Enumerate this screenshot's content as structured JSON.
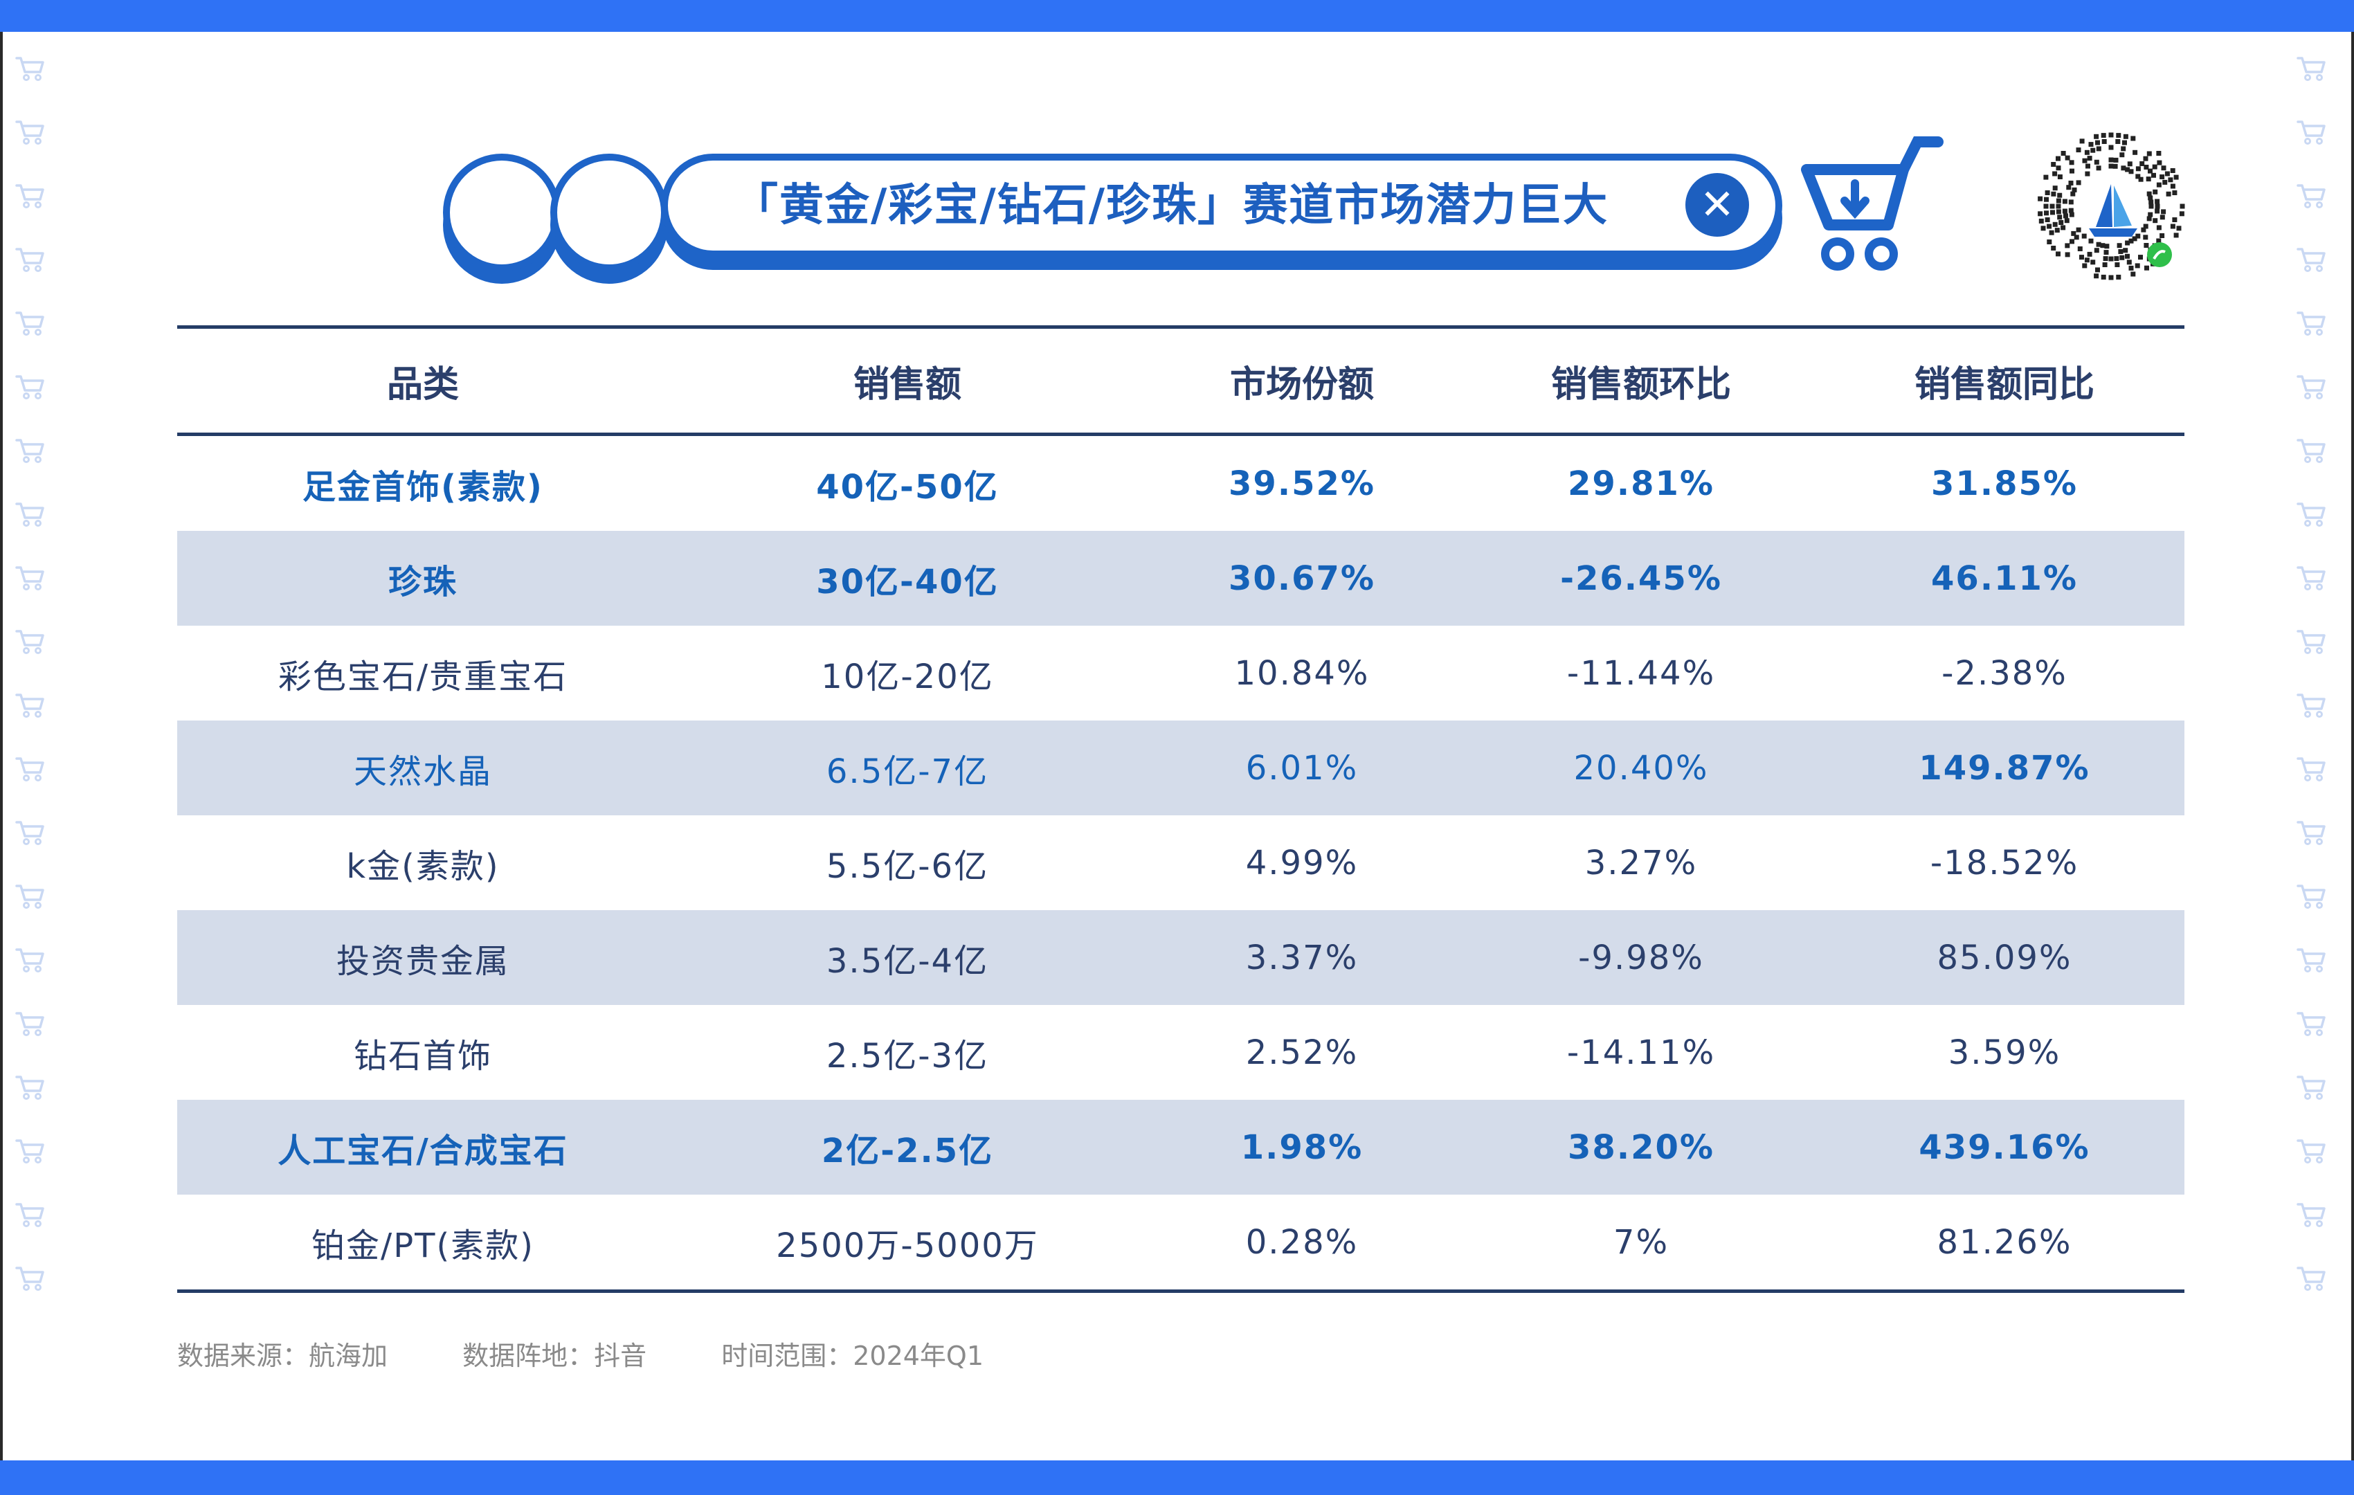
{
  "header": {
    "title": "「黄金/彩宝/钻石/珍珠」赛道市场潜力巨大",
    "close_glyph": "✕",
    "accent_color": "#1e64c8",
    "band_color": "#2f72f5"
  },
  "table": {
    "columns": [
      "品类",
      "销售额",
      "市场份额",
      "销售额环比",
      "销售额同比"
    ],
    "rows": [
      {
        "cells": [
          "足金首饰(素款)",
          "40亿-50亿",
          "39.52%",
          "29.81%",
          "31.85%"
        ]
      },
      {
        "cells": [
          "珍珠",
          "30亿-40亿",
          "30.67%",
          "-26.45%",
          "46.11%"
        ]
      },
      {
        "cells": [
          "彩色宝石/贵重宝石",
          "10亿-20亿",
          "10.84%",
          "-11.44%",
          "-2.38%"
        ]
      },
      {
        "cells": [
          "天然水晶",
          "6.5亿-7亿",
          "6.01%",
          "20.40%",
          "149.87%"
        ]
      },
      {
        "cells": [
          "k金(素款)",
          "5.5亿-6亿",
          "4.99%",
          "3.27%",
          "-18.52%"
        ]
      },
      {
        "cells": [
          "投资贵金属",
          "3.5亿-4亿",
          "3.37%",
          "-9.98%",
          "85.09%"
        ]
      },
      {
        "cells": [
          "钻石首饰",
          "2.5亿-3亿",
          "2.52%",
          "-14.11%",
          "3.59%"
        ]
      },
      {
        "cells": [
          "人工宝石/合成宝石",
          "2亿-2.5亿",
          "1.98%",
          "38.20%",
          "439.16%"
        ]
      },
      {
        "cells": [
          "铂金/PT(素款)",
          "2500万-5000万",
          "0.28%",
          "7%",
          "81.26%"
        ]
      }
    ]
  },
  "footer": {
    "source": "数据来源：航海加",
    "platform": "数据阵地：抖音",
    "period": "时间范围：2024年Q1"
  },
  "icons": [
    "cart-icon",
    "qr-code-icon",
    "close-icon",
    "circle-decoration-icon"
  ]
}
